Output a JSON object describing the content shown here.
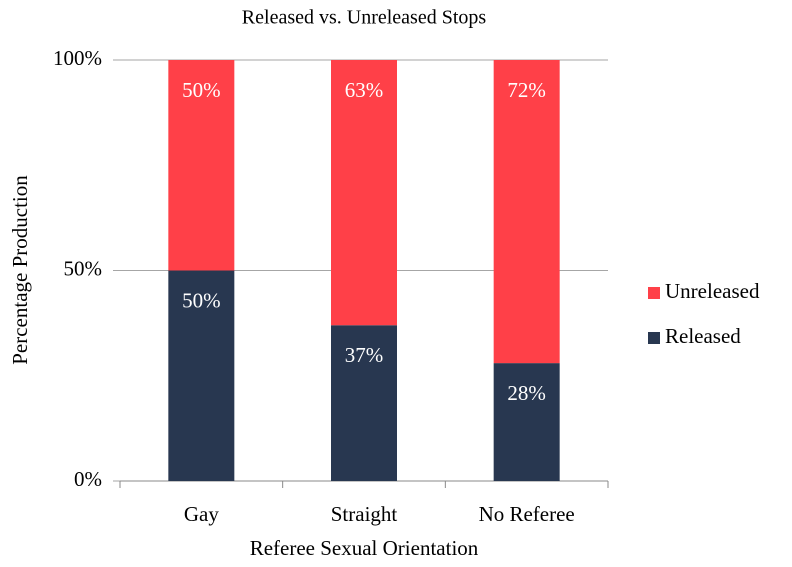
{
  "chart_data": {
    "type": "stacked_bar_100",
    "title": "Released vs. Unreleased Stops",
    "x_label": "Referee Sexual Orientation",
    "y_label": "Percentage Production",
    "categories": [
      "Gay",
      "Straight",
      "No Referee"
    ],
    "series": [
      {
        "name": "Released",
        "color": "#283750",
        "values": [
          50,
          37,
          28
        ],
        "value_labels": [
          "50%",
          "37%",
          "28%"
        ]
      },
      {
        "name": "Unreleased",
        "color": "#ff4048",
        "values": [
          50,
          63,
          72
        ],
        "value_labels": [
          "50%",
          "63%",
          "72%"
        ]
      }
    ],
    "ylim": [
      0,
      100
    ],
    "yticks": [
      {
        "value": 0,
        "label": "0%"
      },
      {
        "value": 50,
        "label": "50%"
      },
      {
        "value": 100,
        "label": "100%"
      }
    ],
    "grid": true,
    "legend": "right"
  }
}
